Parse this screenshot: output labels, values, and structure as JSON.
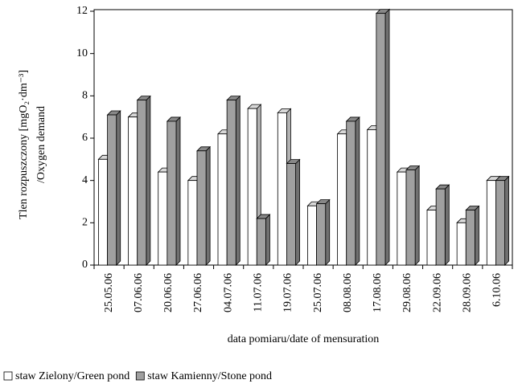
{
  "chart_data": {
    "type": "bar3d",
    "y_label": "Tlen rozpuszczony [mgO₂·dm⁻³]",
    "y_label2": "/Oxygen demand",
    "x_label": "data pomiaru/date of mensuration",
    "categories": [
      "25.05.06",
      "07.06.06",
      "20.06.06",
      "27.06.06",
      "04.07.06",
      "11.07.06",
      "19.07.06",
      "25.07.06",
      "08.08.06",
      "17.08.06",
      "29.08.06",
      "22.09.06",
      "28.09.06",
      "6.10.06"
    ],
    "series": [
      {
        "name": "staw Zielony/Green pond",
        "color": "#ffffff",
        "values": [
          5.0,
          7.0,
          4.4,
          4.0,
          6.2,
          7.4,
          7.2,
          2.8,
          6.2,
          6.4,
          4.4,
          2.6,
          2.0,
          4.0
        ]
      },
      {
        "name": "staw Kamienny/Stone pond",
        "color": "#a0a0a0",
        "values": [
          7.1,
          7.8,
          6.8,
          5.4,
          7.8,
          2.2,
          4.8,
          2.9,
          6.8,
          11.9,
          4.5,
          3.6,
          2.6,
          4.0
        ]
      }
    ],
    "ylim": [
      0,
      12
    ],
    "yticks": [
      0,
      2,
      4,
      6,
      8,
      10,
      12
    ],
    "legend": "bottom-left"
  }
}
